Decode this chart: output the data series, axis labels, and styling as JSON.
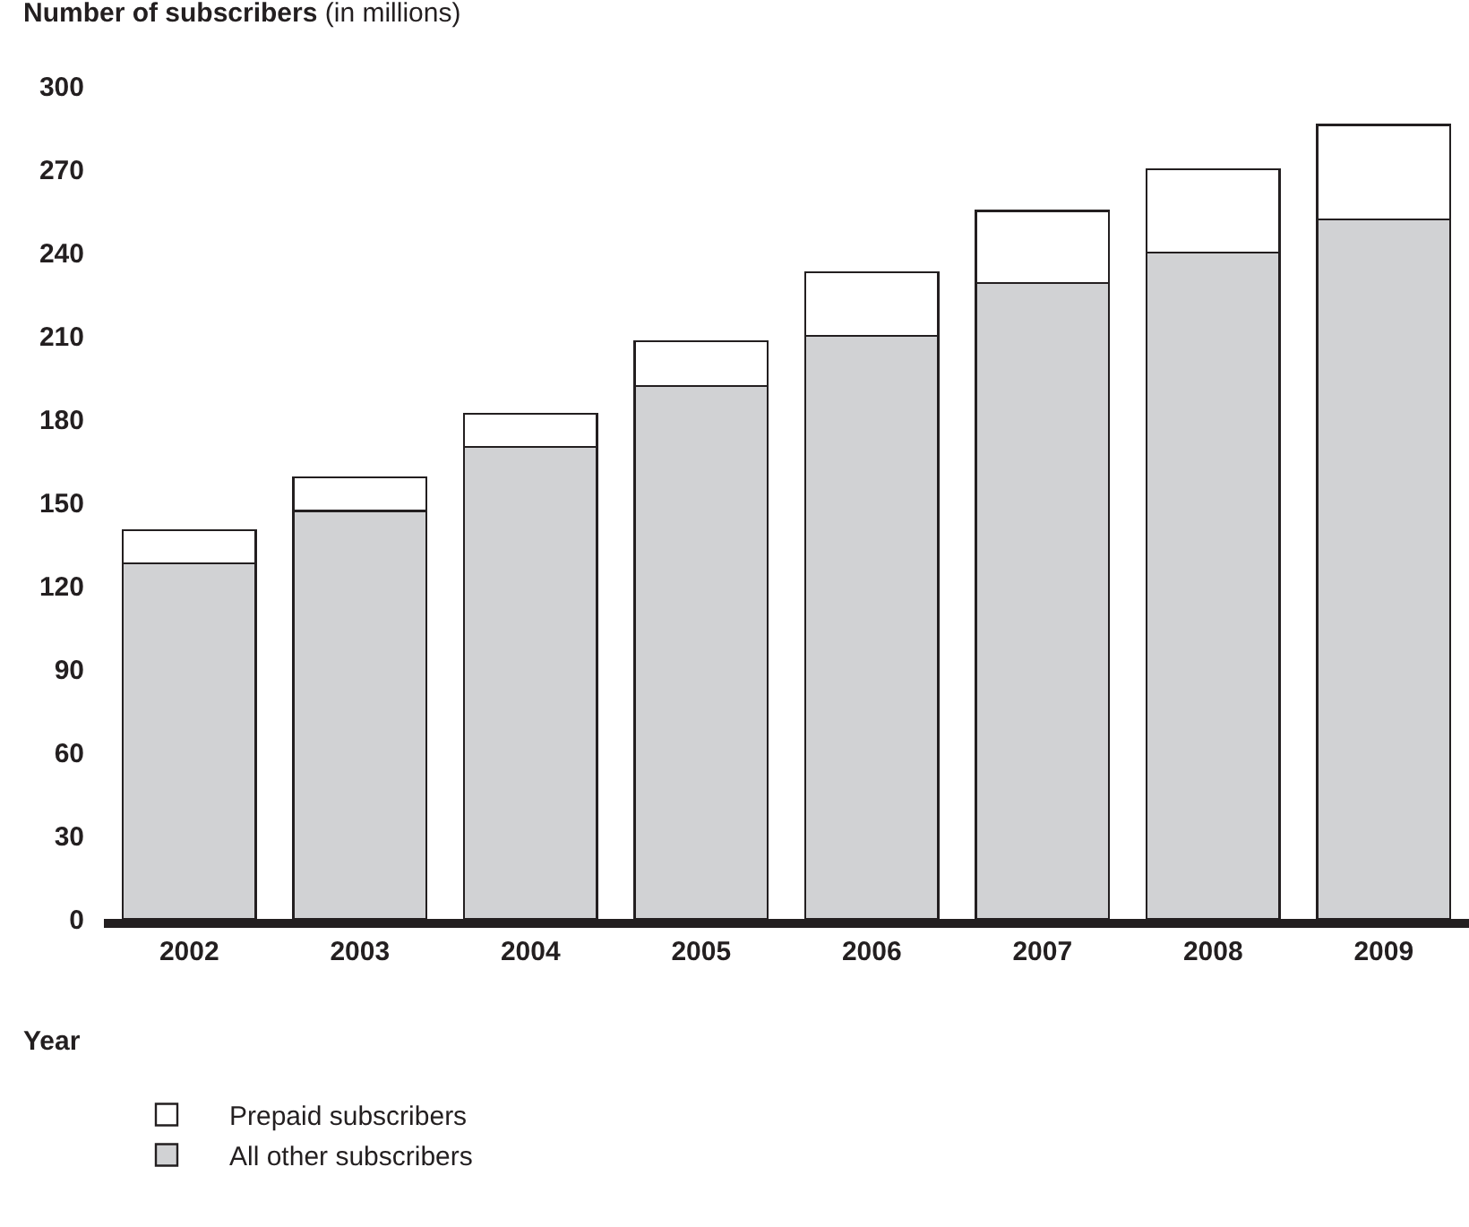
{
  "chart_data": {
    "type": "bar",
    "stacked": true,
    "ylabel": "Number of subscribers (in millions)",
    "xlabel": "Year",
    "categories": [
      "2002",
      "2003",
      "2004",
      "2005",
      "2006",
      "2007",
      "2008",
      "2009"
    ],
    "series": [
      {
        "name": "All other subscribers",
        "color": "#d1d2d4",
        "values": [
          128,
          147,
          170,
          192,
          210,
          229,
          240,
          252
        ]
      },
      {
        "name": "Prepaid subscribers",
        "color": "#ffffff",
        "values": [
          12,
          12,
          12,
          16,
          23,
          26,
          30,
          34
        ]
      }
    ],
    "ylim": [
      0,
      300
    ],
    "yticks": [
      0,
      30,
      60,
      90,
      120,
      150,
      180,
      210,
      240,
      270,
      300
    ],
    "grid": false,
    "legend": "bottom left"
  }
}
